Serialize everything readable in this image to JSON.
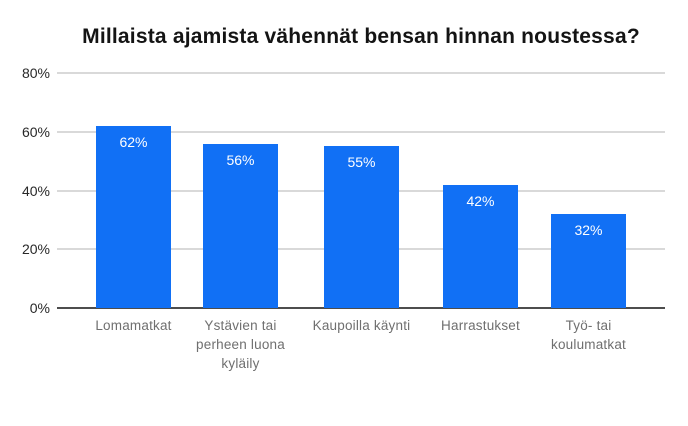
{
  "page": {
    "background": "#FFFFFF"
  },
  "chart_data": {
    "type": "bar",
    "title": "Millaista ajamista vähennät bensan hinnan noustessa?",
    "categories": [
      "Lomamatkat",
      "Ystävien tai perheen luona kyläily",
      "Kaupoilla käynti",
      "Harrastukset",
      "Työ- tai koulumatkat"
    ],
    "values": [
      62,
      56,
      55,
      42,
      32
    ],
    "value_labels": [
      "62%",
      "56%",
      "55%",
      "42%",
      "32%"
    ],
    "y_tick_values": [
      0,
      20,
      40,
      60,
      80
    ],
    "y_tick_labels": [
      "0%",
      "20%",
      "40%",
      "60%",
      "80%"
    ],
    "ylim": [
      0,
      80
    ],
    "xlabel": "",
    "ylabel": "",
    "grid": true,
    "legend": "none",
    "bar_label_position": "inside-top",
    "colors": {
      "bar": "#1170F5",
      "bar_value_label": "#FFFFFF",
      "gridline": "#D9D9D9",
      "axis_line": "#4D4D4D",
      "y_tick_label": "#282828",
      "category_label": "#6F6F6F",
      "title": "#141414",
      "background": "#FFFFFF"
    }
  }
}
